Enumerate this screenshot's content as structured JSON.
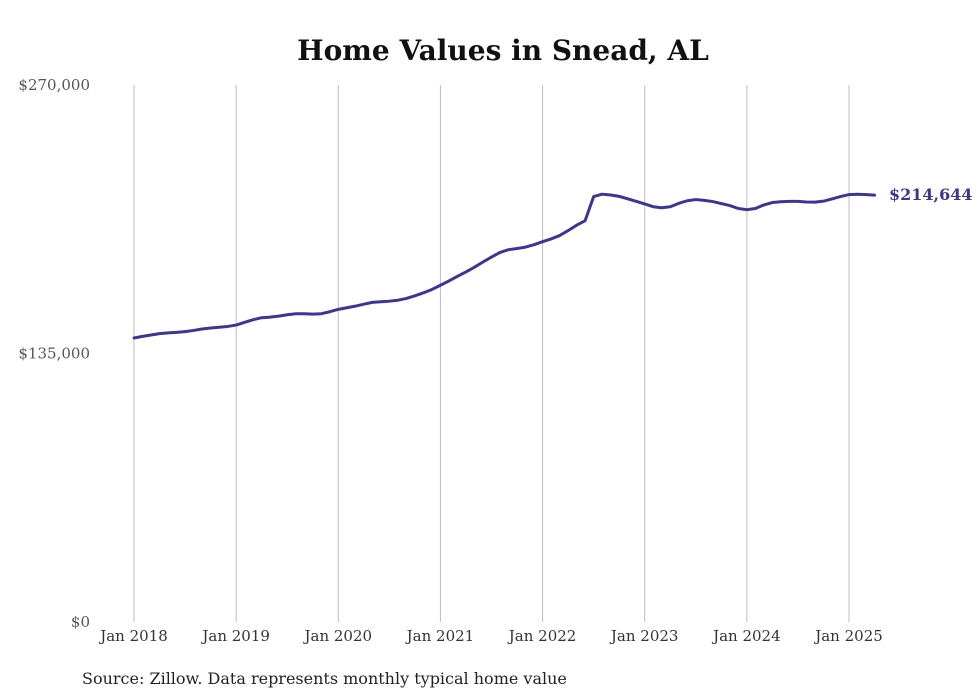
{
  "chart_data": {
    "type": "line",
    "title": "Home Values in Snead, AL",
    "source": "Source: Zillow. Data represents monthly typical home value",
    "xlabel": "",
    "ylabel": "",
    "ylim": [
      0,
      270000
    ],
    "y_ticks": [
      {
        "value": 0,
        "label": "$0"
      },
      {
        "value": 135000,
        "label": "$135,000"
      },
      {
        "value": 270000,
        "label": "$270,000"
      }
    ],
    "x_ticks": [
      {
        "value": "2018-01",
        "label": "Jan 2018"
      },
      {
        "value": "2019-01",
        "label": "Jan 2019"
      },
      {
        "value": "2020-01",
        "label": "Jan 2020"
      },
      {
        "value": "2021-01",
        "label": "Jan 2021"
      },
      {
        "value": "2022-01",
        "label": "Jan 2022"
      },
      {
        "value": "2023-01",
        "label": "Jan 2023"
      },
      {
        "value": "2024-01",
        "label": "Jan 2024"
      },
      {
        "value": "2025-01",
        "label": "Jan 2025"
      }
    ],
    "grid": "vertical",
    "line_color": "#3a3693",
    "series": [
      {
        "end_label": "$214,644",
        "points": [
          {
            "x": "2018-01",
            "y": 142800
          },
          {
            "x": "2018-02",
            "y": 143600
          },
          {
            "x": "2018-03",
            "y": 144300
          },
          {
            "x": "2018-04",
            "y": 145000
          },
          {
            "x": "2018-05",
            "y": 145400
          },
          {
            "x": "2018-06",
            "y": 145600
          },
          {
            "x": "2018-07",
            "y": 146000
          },
          {
            "x": "2018-08",
            "y": 146600
          },
          {
            "x": "2018-09",
            "y": 147300
          },
          {
            "x": "2018-10",
            "y": 147800
          },
          {
            "x": "2018-11",
            "y": 148200
          },
          {
            "x": "2018-12",
            "y": 148600
          },
          {
            "x": "2019-01",
            "y": 149300
          },
          {
            "x": "2019-02",
            "y": 150700
          },
          {
            "x": "2019-03",
            "y": 152000
          },
          {
            "x": "2019-04",
            "y": 153000
          },
          {
            "x": "2019-05",
            "y": 153300
          },
          {
            "x": "2019-06",
            "y": 153800
          },
          {
            "x": "2019-07",
            "y": 154500
          },
          {
            "x": "2019-08",
            "y": 155000
          },
          {
            "x": "2019-09",
            "y": 155000
          },
          {
            "x": "2019-10",
            "y": 154800
          },
          {
            "x": "2019-11",
            "y": 155000
          },
          {
            "x": "2019-12",
            "y": 156000
          },
          {
            "x": "2020-01",
            "y": 157200
          },
          {
            "x": "2020-02",
            "y": 158000
          },
          {
            "x": "2020-03",
            "y": 158800
          },
          {
            "x": "2020-04",
            "y": 159800
          },
          {
            "x": "2020-05",
            "y": 160700
          },
          {
            "x": "2020-06",
            "y": 161000
          },
          {
            "x": "2020-07",
            "y": 161300
          },
          {
            "x": "2020-08",
            "y": 161800
          },
          {
            "x": "2020-09",
            "y": 162700
          },
          {
            "x": "2020-10",
            "y": 164000
          },
          {
            "x": "2020-11",
            "y": 165500
          },
          {
            "x": "2020-12",
            "y": 167200
          },
          {
            "x": "2021-01",
            "y": 169300
          },
          {
            "x": "2021-02",
            "y": 171500
          },
          {
            "x": "2021-03",
            "y": 173800
          },
          {
            "x": "2021-04",
            "y": 176000
          },
          {
            "x": "2021-05",
            "y": 178400
          },
          {
            "x": "2021-06",
            "y": 181000
          },
          {
            "x": "2021-07",
            "y": 183500
          },
          {
            "x": "2021-08",
            "y": 185800
          },
          {
            "x": "2021-09",
            "y": 187200
          },
          {
            "x": "2021-10",
            "y": 187800
          },
          {
            "x": "2021-11",
            "y": 188500
          },
          {
            "x": "2021-12",
            "y": 189700
          },
          {
            "x": "2022-01",
            "y": 191200
          },
          {
            "x": "2022-02",
            "y": 192600
          },
          {
            "x": "2022-03",
            "y": 194300
          },
          {
            "x": "2022-04",
            "y": 196800
          },
          {
            "x": "2022-05",
            "y": 199500
          },
          {
            "x": "2022-06",
            "y": 201800
          },
          {
            "x": "2022-07",
            "y": 213900
          },
          {
            "x": "2022-08",
            "y": 215100
          },
          {
            "x": "2022-09",
            "y": 214700
          },
          {
            "x": "2022-10",
            "y": 214000
          },
          {
            "x": "2022-11",
            "y": 212800
          },
          {
            "x": "2022-12",
            "y": 211500
          },
          {
            "x": "2023-01",
            "y": 210200
          },
          {
            "x": "2023-02",
            "y": 208800
          },
          {
            "x": "2023-03",
            "y": 208300
          },
          {
            "x": "2023-04",
            "y": 208800
          },
          {
            "x": "2023-05",
            "y": 210500
          },
          {
            "x": "2023-06",
            "y": 211800
          },
          {
            "x": "2023-07",
            "y": 212400
          },
          {
            "x": "2023-08",
            "y": 212000
          },
          {
            "x": "2023-09",
            "y": 211400
          },
          {
            "x": "2023-10",
            "y": 210400
          },
          {
            "x": "2023-11",
            "y": 209400
          },
          {
            "x": "2023-12",
            "y": 207900
          },
          {
            "x": "2024-01",
            "y": 207300
          },
          {
            "x": "2024-02",
            "y": 207900
          },
          {
            "x": "2024-03",
            "y": 209700
          },
          {
            "x": "2024-04",
            "y": 210900
          },
          {
            "x": "2024-05",
            "y": 211300
          },
          {
            "x": "2024-06",
            "y": 211500
          },
          {
            "x": "2024-07",
            "y": 211500
          },
          {
            "x": "2024-08",
            "y": 211200
          },
          {
            "x": "2024-09",
            "y": 211100
          },
          {
            "x": "2024-10",
            "y": 211600
          },
          {
            "x": "2024-11",
            "y": 212700
          },
          {
            "x": "2024-12",
            "y": 213900
          },
          {
            "x": "2025-01",
            "y": 214900
          },
          {
            "x": "2025-02",
            "y": 215100
          },
          {
            "x": "2025-03",
            "y": 214900
          },
          {
            "x": "2025-04",
            "y": 214644
          }
        ]
      }
    ]
  }
}
